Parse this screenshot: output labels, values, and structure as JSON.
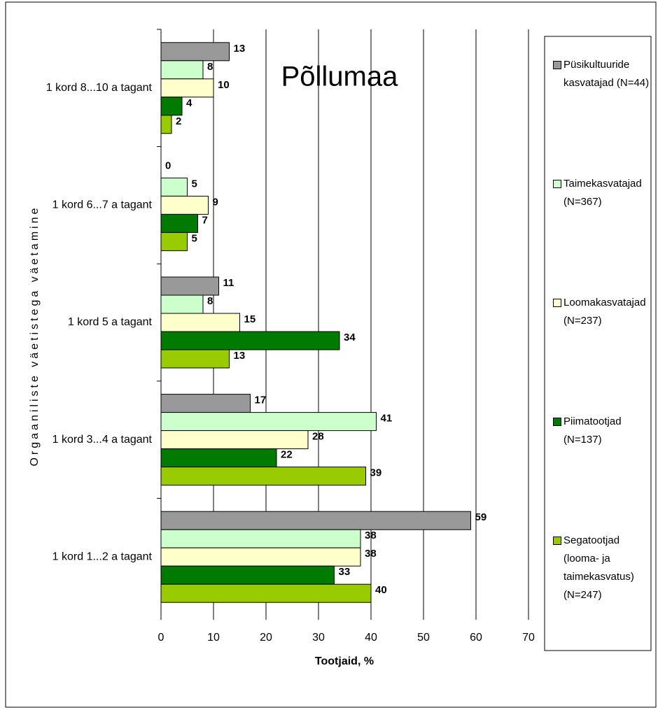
{
  "chart_data": {
    "type": "bar",
    "orientation": "horizontal",
    "title": "Põllumaa",
    "x_label": "Tootjaid, %",
    "y_label": "Orgaaniliste väetistega väetamine",
    "categories": [
      "1 kord 8...10 a tagant",
      "1 kord 6...7 a tagant",
      "1 kord 5 a tagant",
      "1 kord 3...4 a tagant",
      "1 kord 1...2 a tagant"
    ],
    "series": [
      {
        "name": "Püsikultuuride kasvatajad (N=44)",
        "color": "#999999",
        "values": [
          13,
          0,
          11,
          17,
          59
        ]
      },
      {
        "name": "Taimekasvatajad (N=367)",
        "color": "#ccffcc",
        "values": [
          8,
          5,
          8,
          41,
          38
        ]
      },
      {
        "name": "Loomakasvatajad (N=237)",
        "color": "#ffffcc",
        "values": [
          10,
          9,
          15,
          28,
          38
        ]
      },
      {
        "name": "Piimatootjad (N=137)",
        "color": "#007a00",
        "values": [
          4,
          7,
          34,
          22,
          33
        ]
      },
      {
        "name": "Segatootjad (looma- ja taimekasvatus) (N=247)",
        "color": "#99cc00",
        "values": [
          2,
          5,
          13,
          39,
          40
        ]
      }
    ],
    "xlim": [
      0,
      70
    ],
    "xticks": [
      0,
      10,
      20,
      30,
      40,
      50,
      60,
      70
    ],
    "grid": true,
    "legend": "right"
  }
}
